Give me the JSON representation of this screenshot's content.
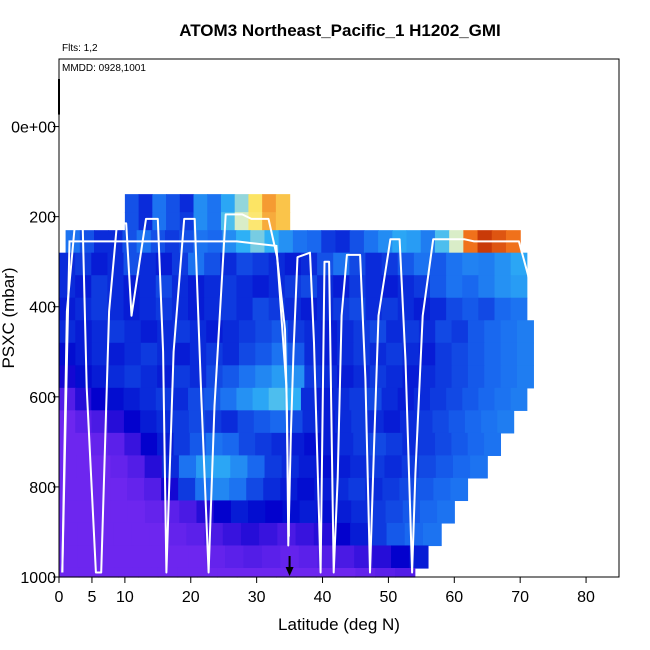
{
  "chart_data": {
    "type": "heatmap",
    "title": "ATOM3 Northeast_Pacific_1 H1202_GMI",
    "annotations": {
      "flights": "Flts: 1,2",
      "dates": "MMDD: 0928,1001"
    },
    "xlabel": "Latitude (deg N)",
    "ylabel": "PSXC (mbar)",
    "xlim": [
      0,
      85
    ],
    "ylim": [
      1000,
      -150
    ],
    "x_ticks": [
      0,
      5,
      10,
      20,
      30,
      40,
      50,
      60,
      70,
      80
    ],
    "y_ticks": [
      {
        "value": 0,
        "label": "0e+00"
      },
      {
        "value": 200,
        "label": "200"
      },
      {
        "value": 400,
        "label": "400"
      },
      {
        "value": 600,
        "label": "600"
      },
      {
        "value": 800,
        "label": "800"
      },
      {
        "value": 1000,
        "label": "1000"
      }
    ],
    "grid": false,
    "legend": "none",
    "colormap": [
      "#7f2cf5",
      "#0000cc",
      "#1a6cf0",
      "#2fb4f6",
      "#f7f7c0",
      "#fde25a",
      "#ef6b18",
      "#b52000"
    ],
    "marker_latitude": 35,
    "flight_track": [
      [
        0.5,
        990
      ],
      [
        1.2,
        410
      ],
      [
        2.4,
        220
      ],
      [
        3.6,
        220
      ],
      [
        4.2,
        580
      ],
      [
        5.6,
        990
      ],
      [
        6.4,
        990
      ],
      [
        7.6,
        410
      ],
      [
        8.8,
        215
      ],
      [
        10.2,
        215
      ],
      [
        11,
        420
      ],
      [
        13.2,
        205
      ],
      [
        15,
        205
      ],
      [
        15.8,
        500
      ],
      [
        16.3,
        990
      ],
      [
        17.4,
        500
      ],
      [
        19,
        205
      ],
      [
        20.6,
        205
      ],
      [
        21.6,
        600
      ],
      [
        22.7,
        990
      ],
      [
        23.6,
        620
      ],
      [
        25.3,
        195
      ],
      [
        27.8,
        195
      ],
      [
        29.2,
        205
      ],
      [
        31.8,
        205
      ],
      [
        33.1,
        290
      ],
      [
        34.3,
        450
      ],
      [
        34.6,
        640
      ],
      [
        34.8,
        930
      ],
      [
        35.2,
        680
      ],
      [
        35.6,
        500
      ],
      [
        36.2,
        290
      ],
      [
        38.1,
        280
      ],
      [
        38.7,
        480
      ],
      [
        39.3,
        780
      ],
      [
        39.7,
        990
      ],
      [
        40.3,
        300
      ],
      [
        41,
        300
      ],
      [
        41.7,
        990
      ],
      [
        42.3,
        780
      ],
      [
        42.9,
        420
      ],
      [
        43.7,
        285
      ],
      [
        45.7,
        285
      ],
      [
        46.5,
        560
      ],
      [
        47.2,
        990
      ],
      [
        47.8,
        720
      ],
      [
        48.5,
        420
      ],
      [
        50.3,
        250
      ],
      [
        51.7,
        250
      ],
      [
        52.6,
        520
      ],
      [
        53.6,
        990
      ],
      [
        54.1,
        770
      ],
      [
        55.2,
        420
      ],
      [
        56.8,
        250
      ],
      [
        61.5,
        250
      ],
      [
        63,
        255
      ],
      [
        69.8,
        255
      ],
      [
        71.2,
        330
      ],
      [
        72.2,
        420
      ]
    ],
    "level2_track": [
      [
        0.5,
        990
      ],
      [
        1.6,
        255
      ],
      [
        22,
        255
      ],
      [
        27,
        255
      ],
      [
        33,
        265
      ],
      [
        34.5,
        575
      ],
      [
        34.9,
        910
      ]
    ],
    "profile_rows": [
      {
        "p": [
          150,
          190
        ],
        "x": [
          10,
          35
        ],
        "v": [
          0.25,
          0.2,
          0.3,
          0.25,
          0.2,
          0.35,
          0.3,
          0.4,
          0.5,
          0.7,
          0.8,
          0.75
        ]
      },
      {
        "p": [
          190,
          230
        ],
        "x": [
          10,
          35
        ],
        "v": [
          0.25,
          0.2,
          0.3,
          0.25,
          0.22,
          0.35,
          0.3,
          0.45,
          0.55,
          0.68,
          0.78,
          0.75
        ]
      },
      {
        "p": [
          230,
          280
        ],
        "x": [
          1,
          70
        ],
        "v": [
          0.3,
          0.25,
          0.2,
          0.2,
          0.25,
          0.3,
          0.25,
          0.22,
          0.25,
          0.3,
          0.28,
          0.35,
          0.42,
          0.48,
          0.42,
          0.36,
          0.3,
          0.28,
          0.22,
          0.2,
          0.25,
          0.3,
          0.35,
          0.4,
          0.38,
          0.32,
          0.45,
          0.55,
          0.85,
          0.95,
          0.9,
          0.85
        ]
      },
      {
        "p": [
          280,
          330
        ],
        "x": [
          0,
          71
        ],
        "v": [
          0.2,
          0.22,
          0.18,
          0.2,
          0.25,
          0.2,
          0.18,
          0.22,
          0.3,
          0.25,
          0.2,
          0.24,
          0.22,
          0.2,
          0.18,
          0.2,
          0.25,
          0.3,
          0.24,
          0.2,
          0.22,
          0.26,
          0.3,
          0.26,
          0.3,
          0.33,
          0.32,
          0.36,
          0.4
        ]
      },
      {
        "p": [
          330,
          380
        ],
        "x": [
          0,
          71
        ],
        "v": [
          0.2,
          0.18,
          0.22,
          0.2,
          0.18,
          0.2,
          0.24,
          0.2,
          0.18,
          0.2,
          0.22,
          0.2,
          0.18,
          0.2,
          0.22,
          0.24,
          0.2,
          0.18,
          0.22,
          0.2,
          0.18,
          0.2,
          0.22,
          0.26,
          0.3,
          0.28,
          0.32,
          0.36,
          0.38
        ]
      },
      {
        "p": [
          380,
          430
        ],
        "x": [
          0,
          71
        ],
        "v": [
          0.18,
          0.2,
          0.22,
          0.2,
          0.18,
          0.2,
          0.22,
          0.2,
          0.18,
          0.2,
          0.22,
          0.2,
          0.24,
          0.22,
          0.2,
          0.18,
          0.2,
          0.22,
          0.24,
          0.2,
          0.22,
          0.2,
          0.18,
          0.2,
          0.24,
          0.26,
          0.24,
          0.28,
          0.3
        ]
      },
      {
        "p": [
          430,
          480
        ],
        "x": [
          0,
          72
        ],
        "v": [
          0.2,
          0.18,
          0.2,
          0.22,
          0.2,
          0.18,
          0.2,
          0.22,
          0.2,
          0.18,
          0.2,
          0.22,
          0.24,
          0.26,
          0.22,
          0.2,
          0.18,
          0.2,
          0.22,
          0.24,
          0.2,
          0.22,
          0.2,
          0.24,
          0.22,
          0.26,
          0.28,
          0.3,
          0.32
        ]
      },
      {
        "p": [
          480,
          530
        ],
        "x": [
          0,
          72
        ],
        "v": [
          0.16,
          0.18,
          0.2,
          0.18,
          0.2,
          0.22,
          0.2,
          0.18,
          0.2,
          0.22,
          0.2,
          0.24,
          0.26,
          0.3,
          0.26,
          0.2,
          0.18,
          0.2,
          0.22,
          0.2,
          0.22,
          0.2,
          0.18,
          0.22,
          0.24,
          0.26,
          0.28,
          0.3,
          0.32
        ]
      },
      {
        "p": [
          530,
          580
        ],
        "x": [
          0,
          72
        ],
        "v": [
          0.12,
          0.16,
          0.18,
          0.2,
          0.22,
          0.2,
          0.18,
          0.22,
          0.2,
          0.24,
          0.26,
          0.3,
          0.34,
          0.38,
          0.36,
          0.22,
          0.2,
          0.18,
          0.2,
          0.22,
          0.2,
          0.18,
          0.2,
          0.22,
          0.24,
          0.26,
          0.28,
          0.3,
          0.32
        ]
      },
      {
        "p": [
          580,
          630
        ],
        "x": [
          0,
          71
        ],
        "v": [
          0.05,
          0.1,
          0.14,
          0.16,
          0.18,
          0.2,
          0.22,
          0.2,
          0.24,
          0.26,
          0.3,
          0.36,
          0.4,
          0.45,
          0.42,
          0.2,
          0.18,
          0.2,
          0.22,
          0.24,
          0.2,
          0.18,
          0.2,
          0.22,
          0.24,
          0.26,
          0.28,
          0.3,
          0.32
        ]
      },
      {
        "p": [
          630,
          680
        ],
        "x": [
          0,
          69
        ],
        "v": [
          0.02,
          0.04,
          0.06,
          0.1,
          0.14,
          0.18,
          0.2,
          0.22,
          0.24,
          0.22,
          0.2,
          0.24,
          0.26,
          0.28,
          0.24,
          0.2,
          0.18,
          0.2,
          0.22,
          0.2,
          0.18,
          0.2,
          0.22,
          0.24,
          0.26,
          0.28,
          0.3,
          0.32
        ]
      },
      {
        "p": [
          680,
          730
        ],
        "x": [
          0,
          67
        ],
        "v": [
          0.02,
          0.02,
          0.03,
          0.04,
          0.08,
          0.14,
          0.18,
          0.22,
          0.26,
          0.3,
          0.28,
          0.24,
          0.22,
          0.2,
          0.18,
          0.16,
          0.18,
          0.2,
          0.22,
          0.24,
          0.22,
          0.2,
          0.22,
          0.24,
          0.26,
          0.28,
          0.3
        ]
      },
      {
        "p": [
          730,
          780
        ],
        "x": [
          0,
          65
        ],
        "v": [
          0.02,
          0.02,
          0.02,
          0.03,
          0.05,
          0.1,
          0.2,
          0.3,
          0.38,
          0.4,
          0.35,
          0.28,
          0.22,
          0.2,
          0.18,
          0.16,
          0.18,
          0.2,
          0.22,
          0.2,
          0.22,
          0.24,
          0.26,
          0.28,
          0.3
        ]
      },
      {
        "p": [
          780,
          830
        ],
        "x": [
          0,
          62
        ],
        "v": [
          0.02,
          0.02,
          0.02,
          0.02,
          0.03,
          0.05,
          0.12,
          0.22,
          0.3,
          0.34,
          0.3,
          0.24,
          0.2,
          0.18,
          0.16,
          0.18,
          0.2,
          0.22,
          0.2,
          0.22,
          0.24,
          0.26,
          0.28,
          0.3
        ]
      },
      {
        "p": [
          830,
          880
        ],
        "x": [
          0,
          60
        ],
        "v": [
          0.02,
          0.02,
          0.02,
          0.02,
          0.02,
          0.03,
          0.04,
          0.06,
          0.1,
          0.14,
          0.18,
          0.16,
          0.14,
          0.16,
          0.18,
          0.16,
          0.18,
          0.2,
          0.22,
          0.24,
          0.26,
          0.28,
          0.3
        ]
      },
      {
        "p": [
          880,
          930
        ],
        "x": [
          0,
          58
        ],
        "v": [
          0.02,
          0.02,
          0.02,
          0.02,
          0.02,
          0.02,
          0.03,
          0.04,
          0.06,
          0.08,
          0.1,
          0.08,
          0.06,
          0.08,
          0.1,
          0.14,
          0.18,
          0.22,
          0.26,
          0.28,
          0.3
        ]
      },
      {
        "p": [
          930,
          980
        ],
        "x": [
          0,
          56
        ],
        "v": [
          0.02,
          0.02,
          0.02,
          0.02,
          0.02,
          0.02,
          0.02,
          0.02,
          0.03,
          0.04,
          0.05,
          0.04,
          0.03,
          0.04,
          0.05,
          0.06,
          0.08,
          0.1,
          0.14,
          0.18
        ]
      },
      {
        "p": [
          980,
          1000
        ],
        "x": [
          0,
          54
        ],
        "v": [
          0.02,
          0.02,
          0.02,
          0.02,
          0.02,
          0.02,
          0.02,
          0.02,
          0.02,
          0.02,
          0.02,
          0.02,
          0.02,
          0.02,
          0.02,
          0.03,
          0.04,
          0.05
        ]
      }
    ]
  }
}
